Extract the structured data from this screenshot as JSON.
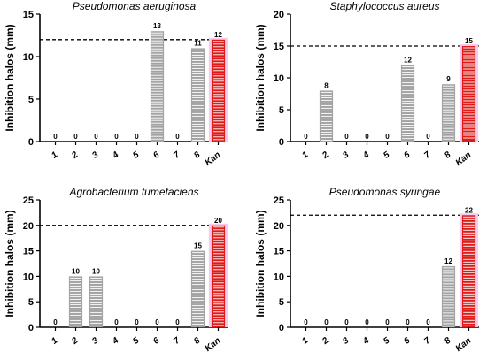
{
  "colors": {
    "gray_bar": "#a3a3a3",
    "kan_bar": "#dd1c1a",
    "kan_halo": "#f7c9ea",
    "stripe": "#ffffff"
  },
  "chart_data": [
    {
      "type": "bar",
      "title": "Pseudomonas aeruginosa",
      "ylabel": "Inhibition halos (mm)",
      "categories": [
        "1",
        "2",
        "3",
        "4",
        "5",
        "6",
        "7",
        "8",
        "Kan"
      ],
      "values": [
        0,
        0,
        0,
        0,
        0,
        13,
        0,
        11,
        12
      ],
      "labels": [
        "0",
        "0",
        "0",
        "0",
        "0",
        "13",
        "0",
        "11",
        "12"
      ],
      "ylim": [
        0,
        15
      ],
      "yticks": [
        "0",
        "5",
        "10",
        "15"
      ],
      "reference_line": 12
    },
    {
      "type": "bar",
      "title": "Staphylococcus aureus",
      "ylabel": "Inhibition halos (mm)",
      "categories": [
        "1",
        "2",
        "3",
        "4",
        "5",
        "6",
        "7",
        "8",
        "Kan"
      ],
      "values": [
        0,
        8,
        0,
        0,
        0,
        12,
        0,
        9,
        15
      ],
      "labels": [
        "0",
        "8",
        "0",
        "0",
        "0",
        "12",
        "0",
        "9",
        "15"
      ],
      "ylim": [
        0,
        20
      ],
      "yticks": [
        "0",
        "5",
        "10",
        "15",
        "20"
      ],
      "reference_line": 15
    },
    {
      "type": "bar",
      "title": "Agrobacterium tumefaciens",
      "ylabel": "Inhibition halos (mm)",
      "categories": [
        "1",
        "2",
        "3",
        "4",
        "5",
        "6",
        "7",
        "8",
        "Kan"
      ],
      "values": [
        0,
        10,
        10,
        0,
        0,
        0,
        0,
        15,
        20
      ],
      "labels": [
        "0",
        "10",
        "10",
        "0",
        "0",
        "0",
        "0",
        "15",
        "20"
      ],
      "ylim": [
        0,
        25
      ],
      "yticks": [
        "0",
        "5",
        "10",
        "15",
        "20",
        "25"
      ],
      "reference_line": 20
    },
    {
      "type": "bar",
      "title": "Pseudomonas syringae",
      "ylabel": "Inhibition halos (mm)",
      "categories": [
        "1",
        "2",
        "3",
        "4",
        "5",
        "6",
        "7",
        "8",
        "Kan"
      ],
      "values": [
        0,
        0,
        0,
        0,
        0,
        0,
        0,
        12,
        22
      ],
      "labels": [
        "0",
        "0",
        "0",
        "0",
        "0",
        "0",
        "0",
        "12",
        "22"
      ],
      "ylim": [
        0,
        25
      ],
      "yticks": [
        "0",
        "5",
        "10",
        "15",
        "20",
        "25"
      ],
      "reference_line": 22
    }
  ]
}
